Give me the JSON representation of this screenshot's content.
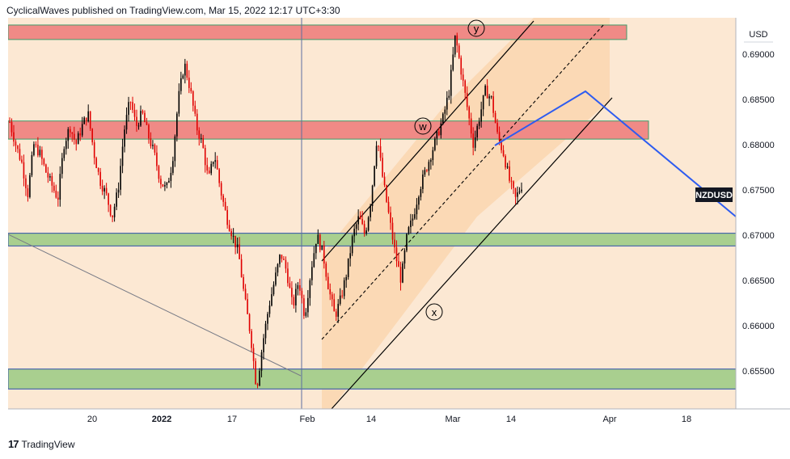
{
  "header": {
    "text": "CyclicalWaves published on TradingView.com, Mar 15, 2022 12:17 UTC+3:30"
  },
  "footer": {
    "brand": "TradingView",
    "brand_mark": "17"
  },
  "chart_data": {
    "type": "candlestick",
    "symbol": "NZDUSD",
    "currency": "USD",
    "x_ticks": [
      "20",
      "2022",
      "17",
      "Feb",
      "14",
      "Mar",
      "14",
      "Apr",
      "18"
    ],
    "y_ticks": [
      "0.69000",
      "0.68500",
      "0.68000",
      "0.67500",
      "0.67000",
      "0.66500",
      "0.66000",
      "0.65500"
    ],
    "ylim": [
      0.6508,
      0.694
    ],
    "last_price_label": "NZDUSD",
    "wave_labels": [
      "y",
      "w",
      "x"
    ],
    "zones": [
      {
        "kind": "resistance",
        "from": 0.6916,
        "to": 0.6932
      },
      {
        "kind": "resistance",
        "from": 0.6806,
        "to": 0.6826
      },
      {
        "kind": "support",
        "from": 0.6688,
        "to": 0.6702
      },
      {
        "kind": "support",
        "from": 0.653,
        "to": 0.6552
      }
    ],
    "price_path": [
      [
        0.6825,
        0.68
      ],
      [
        0.678,
        0.6745
      ],
      [
        0.68,
        0.679
      ],
      [
        0.677,
        0.6755
      ],
      [
        0.674,
        0.68
      ],
      [
        0.682,
        0.68
      ],
      [
        0.682,
        0.6835
      ],
      [
        0.679,
        0.676
      ],
      [
        0.6745,
        0.672
      ],
      [
        0.675,
        0.6815
      ],
      [
        0.685,
        0.682
      ],
      [
        0.6835,
        0.681
      ],
      [
        0.679,
        0.676
      ],
      [
        0.675,
        0.678
      ],
      [
        0.685,
        0.689
      ],
      [
        0.686,
        0.682
      ],
      [
        0.68,
        0.676
      ],
      [
        0.679,
        0.675
      ],
      [
        0.672,
        0.67
      ],
      [
        0.668,
        0.663
      ],
      [
        0.659,
        0.653
      ],
      [
        0.658,
        0.662
      ],
      [
        0.665,
        0.668
      ],
      [
        0.666,
        0.662
      ],
      [
        0.665,
        0.661
      ],
      [
        0.666,
        0.67
      ],
      [
        0.668,
        0.664
      ],
      [
        0.661,
        0.663
      ],
      [
        0.666,
        0.67
      ],
      [
        0.672,
        0.67
      ],
      [
        0.674,
        0.681
      ],
      [
        0.676,
        0.672
      ],
      [
        0.668,
        0.665
      ],
      [
        0.67,
        0.672
      ],
      [
        0.675,
        0.677
      ],
      [
        0.679,
        0.681
      ],
      [
        0.683,
        0.686
      ],
      [
        0.692,
        0.688
      ],
      [
        0.684,
        0.68
      ],
      [
        0.683,
        0.686
      ],
      [
        0.685,
        0.681
      ],
      [
        0.679,
        0.676
      ],
      [
        0.674,
        0.6755
      ]
    ]
  }
}
